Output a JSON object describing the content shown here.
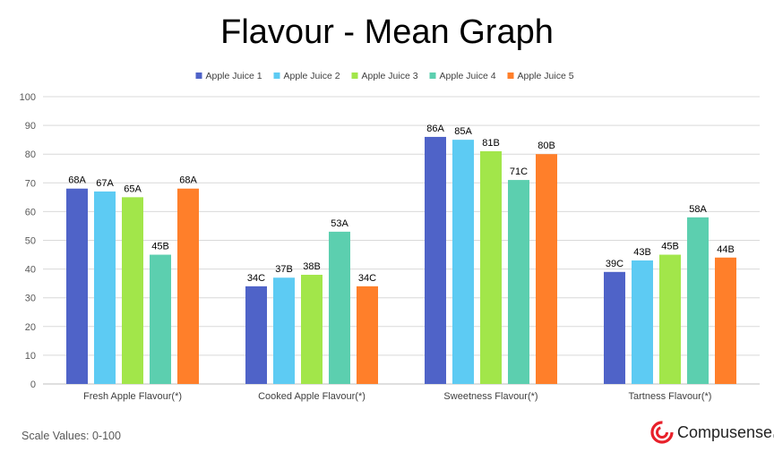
{
  "chart_data": {
    "type": "bar",
    "title": "Flavour - Mean Graph",
    "xlabel": "",
    "ylabel": "",
    "ylim": [
      0,
      100
    ],
    "yticks": [
      0,
      10,
      20,
      30,
      40,
      50,
      60,
      70,
      80,
      90,
      100
    ],
    "grid": true,
    "legend_position": "top",
    "categories": [
      "Fresh Apple Flavour(*)",
      "Cooked Apple Flavour(*)",
      "Sweetness Flavour(*)",
      "Tartness Flavour(*)"
    ],
    "series": [
      {
        "name": "Apple Juice 1",
        "color": "#4F63C8",
        "values": [
          68,
          34,
          86,
          39
        ],
        "labels": [
          "68A",
          "34C",
          "86A",
          "39C"
        ]
      },
      {
        "name": "Apple Juice 2",
        "color": "#5DCBF3",
        "values": [
          67,
          37,
          85,
          43
        ],
        "labels": [
          "67A",
          "37B",
          "85A",
          "43B"
        ]
      },
      {
        "name": "Apple Juice 3",
        "color": "#A2E64A",
        "values": [
          65,
          38,
          81,
          45
        ],
        "labels": [
          "65A",
          "38B",
          "81B",
          "45B"
        ]
      },
      {
        "name": "Apple Juice 4",
        "color": "#5CCFAF",
        "values": [
          45,
          53,
          71,
          58
        ],
        "labels": [
          "45B",
          "53A",
          "71C",
          "58A"
        ]
      },
      {
        "name": "Apple Juice 5",
        "color": "#FF7F2A",
        "values": [
          68,
          34,
          80,
          44
        ],
        "labels": [
          "68A",
          "34C",
          "80B",
          "44B"
        ]
      }
    ]
  },
  "footer": {
    "scale_note": "Scale Values: 0-100",
    "brand": "Compusense",
    "brand_mark": "®",
    "brand_color": "#E8202A"
  }
}
